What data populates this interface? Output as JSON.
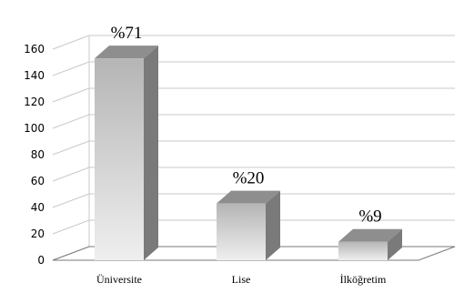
{
  "chart_data": {
    "type": "bar",
    "title": "",
    "xlabel": "",
    "ylabel": "",
    "categories": [
      "Üniversite",
      "Lise",
      "İlköğretim"
    ],
    "values": [
      153,
      43,
      14
    ],
    "data_labels": [
      "%71",
      "%20",
      "%9"
    ],
    "y_ticks": [
      "0",
      "20",
      "40",
      "60",
      "80",
      "100",
      "120",
      "140",
      "160"
    ],
    "ylim": [
      0,
      160
    ],
    "grid": true,
    "style": "3d-column",
    "colors": {
      "bar_front_top": "#b5b5b5",
      "bar_front_bottom": "#efefef",
      "bar_side": "#7a7a7a",
      "bar_top": "#8e8e8e",
      "grid": "#c9c9c9",
      "axis": "#7a7a7a"
    }
  }
}
